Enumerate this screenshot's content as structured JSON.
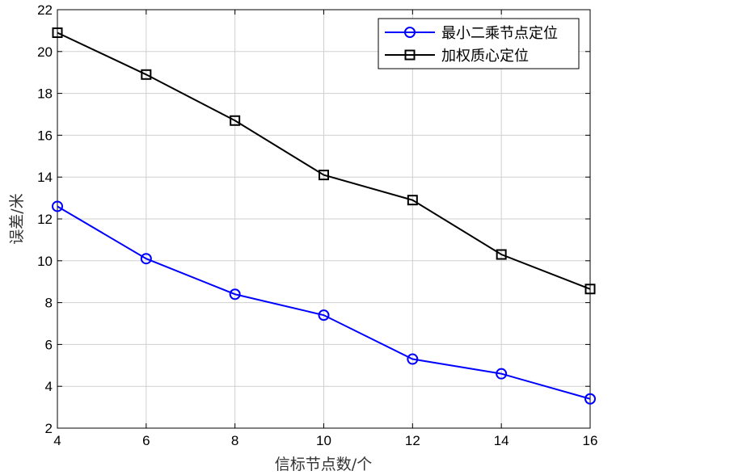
{
  "chart_data": {
    "type": "line",
    "title": "",
    "xlabel": "信标节点数/个",
    "ylabel": "误差/米",
    "xlim": [
      4,
      16
    ],
    "ylim": [
      2,
      22
    ],
    "xticks": [
      4,
      6,
      8,
      10,
      12,
      14,
      16
    ],
    "yticks": [
      2,
      4,
      6,
      8,
      10,
      12,
      14,
      16,
      18,
      20,
      22
    ],
    "grid": true,
    "legend_position": "top-right",
    "x": [
      4,
      6,
      8,
      10,
      12,
      14,
      16
    ],
    "series": [
      {
        "name": "最小二乘节点定位",
        "marker": "circle",
        "color": "#0000ff",
        "values": [
          12.6,
          10.1,
          8.4,
          7.4,
          5.3,
          4.6,
          3.4
        ]
      },
      {
        "name": "加权质心定位",
        "marker": "square",
        "color": "#000000",
        "values": [
          20.9,
          18.9,
          16.7,
          14.1,
          12.9,
          10.3,
          8.65
        ]
      }
    ]
  }
}
